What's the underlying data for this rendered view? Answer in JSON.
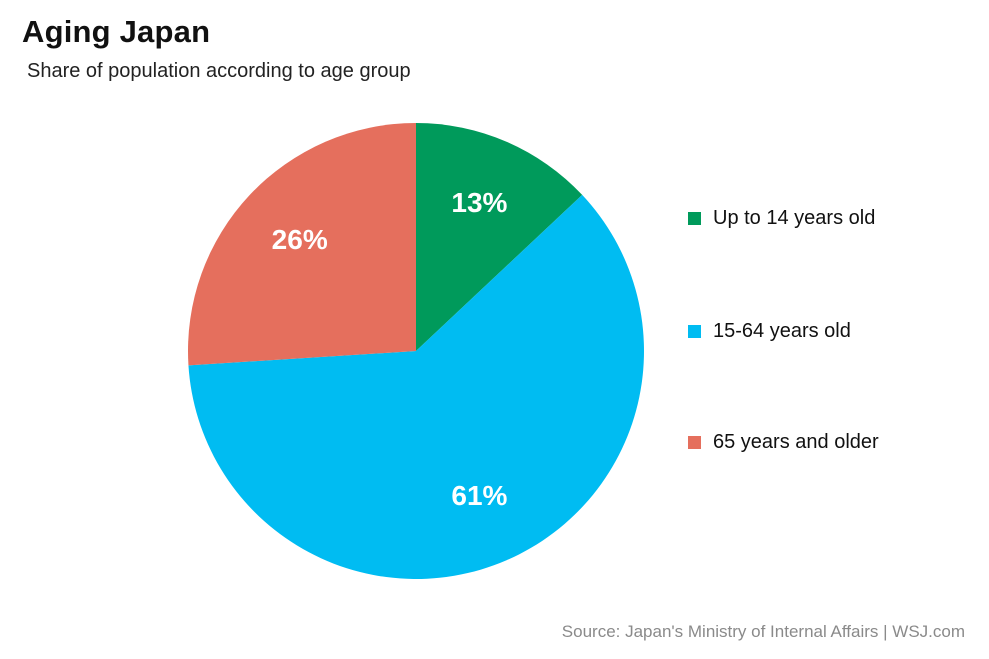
{
  "chart_data": {
    "type": "pie",
    "title": "Aging Japan",
    "subtitle": "Share of population according to age group",
    "slices": [
      {
        "label": "Up to 14 years old",
        "value": 13,
        "display": "13%",
        "color": "#009a5b"
      },
      {
        "label": "15-64 years old",
        "value": 61,
        "display": "61%",
        "color": "#00bcf2"
      },
      {
        "label": "65 years and older",
        "value": 26,
        "display": "26%",
        "color": "#e56f5d"
      }
    ],
    "legend_position": "right",
    "source": "Source: Japan's Ministry of Internal Affairs  |  WSJ.com"
  }
}
